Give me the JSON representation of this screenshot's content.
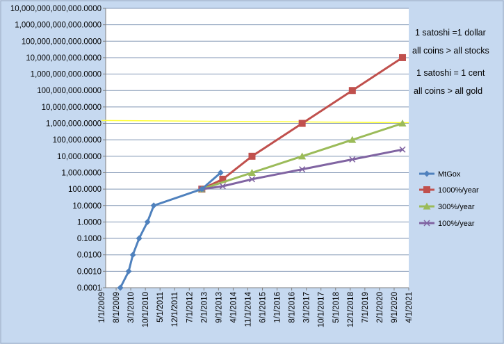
{
  "chart_data": {
    "type": "line",
    "title": "",
    "xlabel": "",
    "ylabel": "",
    "y_scale": "log",
    "ylim": [
      0.0001,
      10000000000000
    ],
    "grid": true,
    "legend_position": "right",
    "background_color": "#c6d9f0",
    "plot_color": "#ffffff",
    "gridline_color": "#8096b4",
    "x_ticks": [
      "1/1/2009",
      "8/1/2009",
      "3/1/2010",
      "10/1/2010",
      "5/1/2011",
      "12/1/2011",
      "7/1/2012",
      "2/1/2013",
      "9/1/2013",
      "4/1/2014",
      "11/1/2014",
      "6/1/2015",
      "1/1/2016",
      "8/1/2016",
      "3/1/2017",
      "10/1/2017",
      "5/1/2018",
      "12/1/2018",
      "7/1/2019",
      "2/1/2020",
      "9/1/2020",
      "4/1/2021"
    ],
    "y_ticks": [
      {
        "value": 0.0001,
        "label": "0.0001"
      },
      {
        "value": 0.001,
        "label": "0.0010"
      },
      {
        "value": 0.01,
        "label": "0.0100"
      },
      {
        "value": 0.1,
        "label": "0.1000"
      },
      {
        "value": 1,
        "label": "1.0000"
      },
      {
        "value": 10,
        "label": "10.0000"
      },
      {
        "value": 100,
        "label": "100.0000"
      },
      {
        "value": 1000,
        "label": "1,000.0000"
      },
      {
        "value": 10000,
        "label": "10,000.0000"
      },
      {
        "value": 100000,
        "label": "100,000.0000"
      },
      {
        "value": 1000000,
        "label": "1,000,000.0000"
      },
      {
        "value": 10000000,
        "label": "10,000,000.0000"
      },
      {
        "value": 100000000,
        "label": "100,000,000.0000"
      },
      {
        "value": 1000000000,
        "label": "1,000,000,000.0000"
      },
      {
        "value": 10000000000,
        "label": "10,000,000,000.0000"
      },
      {
        "value": 100000000000,
        "label": "100,000,000,000.0000"
      },
      {
        "value": 1000000000000,
        "label": "1,000,000,000,000.0000"
      },
      {
        "value": 10000000000000,
        "label": "10,000,000,000,000.0000"
      }
    ],
    "series": [
      {
        "name": "MtGox",
        "color": "#4f81bd",
        "marker": "diamond",
        "points": [
          [
            "2009-10-01",
            0.0001
          ],
          [
            "2010-02-01",
            0.001
          ],
          [
            "2010-04-01",
            0.01
          ],
          [
            "2010-07-01",
            0.1
          ],
          [
            "2010-11-01",
            1
          ],
          [
            "2011-02-01",
            10
          ],
          [
            "2013-01-01",
            100
          ],
          [
            "2013-10-01",
            1000
          ]
        ]
      },
      {
        "name": "1000%/year",
        "color": "#c0504d",
        "marker": "square",
        "points": [
          [
            "2013-01-01",
            100
          ],
          [
            "2013-11-01",
            400
          ],
          [
            "2015-01-01",
            10000
          ],
          [
            "2017-01-01",
            1000000
          ],
          [
            "2019-01-01",
            100000000
          ],
          [
            "2021-01-01",
            10000000000
          ]
        ]
      },
      {
        "name": "300%/year",
        "color": "#9bbb59",
        "marker": "triangle",
        "points": [
          [
            "2013-01-01",
            100
          ],
          [
            "2015-01-01",
            1000
          ],
          [
            "2017-01-01",
            10000
          ],
          [
            "2019-01-01",
            100000
          ],
          [
            "2021-01-01",
            1000000
          ]
        ]
      },
      {
        "name": "100%/year",
        "color": "#8064a2",
        "marker": "x",
        "points": [
          [
            "2013-01-01",
            100
          ],
          [
            "2013-11-01",
            150
          ],
          [
            "2015-01-01",
            400
          ],
          [
            "2017-01-01",
            1600
          ],
          [
            "2019-01-01",
            6400
          ],
          [
            "2021-01-01",
            25600
          ]
        ]
      }
    ],
    "reference_line": {
      "color": "#ffff33",
      "points": [
        [
          "2009-01-01",
          1500000
        ],
        [
          "2021-04-01",
          1100000
        ]
      ]
    },
    "annotations": [
      "1 satoshi  =1 dollar",
      "all coins > all stocks",
      "1 satoshi  =  1 cent",
      "all coins > all gold"
    ]
  }
}
